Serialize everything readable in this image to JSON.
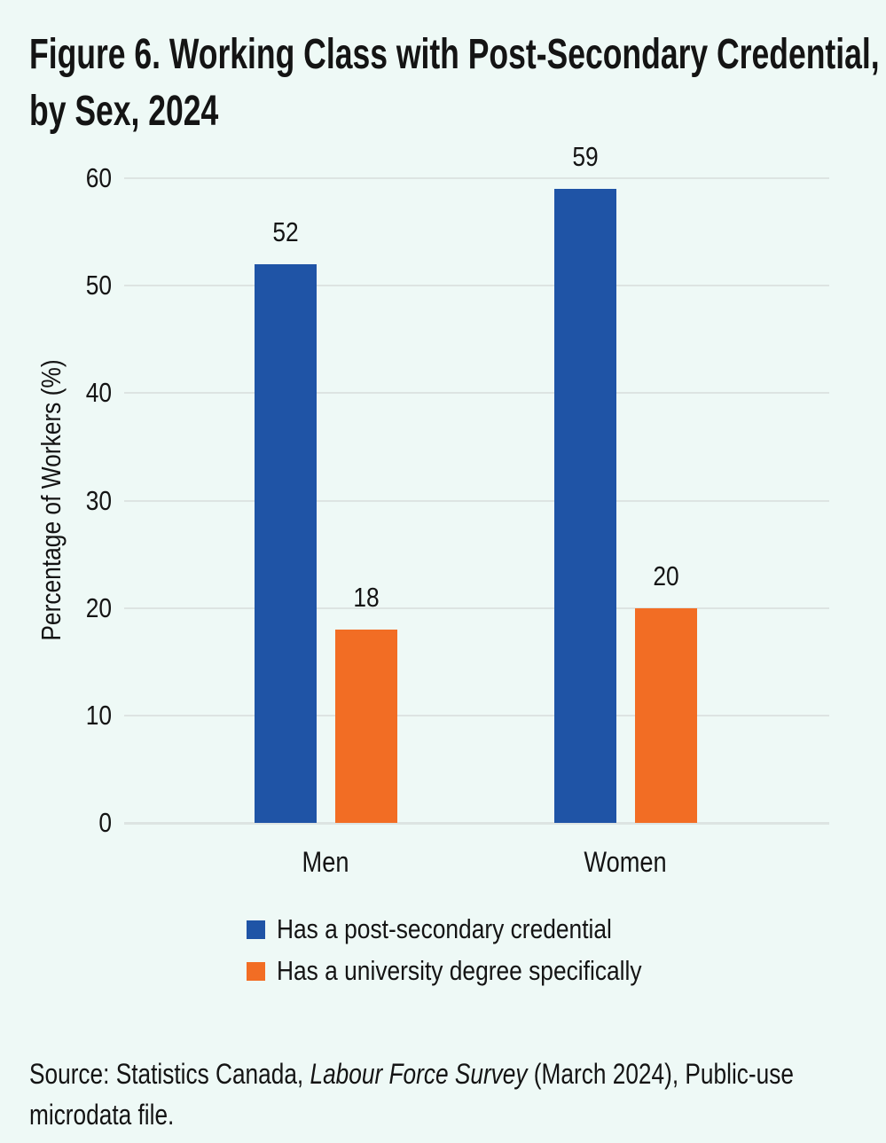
{
  "page": {
    "background": "#eef9f6",
    "text_color": "#141414"
  },
  "title_lines": [
    "Figure 6. Working Class with Post-Secondary Credential,",
    "by Sex, 2024"
  ],
  "chart_data": {
    "type": "bar",
    "title": "Figure 6. Working Class with Post-Secondary Credential, by Sex, 2024",
    "categories": [
      "Men",
      "Women"
    ],
    "series": [
      {
        "name": "Has a post-secondary credential",
        "color": "#1f54a6",
        "values": [
          52,
          59
        ]
      },
      {
        "name": "Has a university degree specifically",
        "color": "#f26d24",
        "values": [
          18,
          20
        ]
      }
    ],
    "ylabel": "Percentage of Workers (%)",
    "xlabel": "",
    "ylim": [
      0,
      60
    ],
    "yticks": [
      0,
      10,
      20,
      30,
      40,
      50,
      60
    ],
    "grid": true,
    "gridline_color": "#dde4e2",
    "legend_position": "bottom",
    "value_labels_shown": true
  },
  "source": {
    "line1_prefix": "Source: Statistics Canada, ",
    "line1_italic": "Labour Force Survey",
    "line1_suffix": " (March 2024), Public-use",
    "line2": "microdata file."
  }
}
